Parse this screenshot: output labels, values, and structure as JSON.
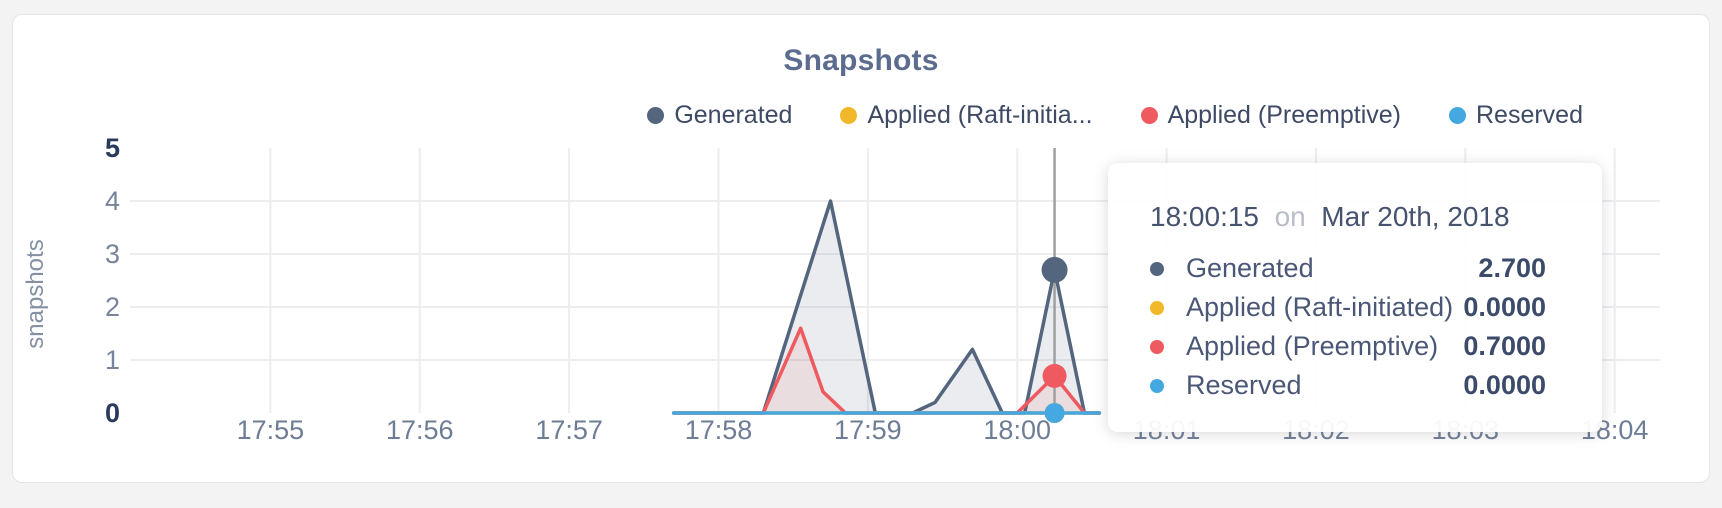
{
  "card": {
    "background": "#ffffff",
    "border_color": "#e3e4e8"
  },
  "chart": {
    "title": "Snapshots",
    "ylabel": "snapshots",
    "legend": {
      "items": [
        {
          "label": "Generated",
          "color": "#54657e"
        },
        {
          "label": "Applied (Raft-initia...",
          "color": "#f1b82a"
        },
        {
          "label": "Applied (Preemptive)",
          "color": "#ee5a5f"
        },
        {
          "label": "Reserved",
          "color": "#45a8e0"
        }
      ]
    }
  },
  "chart_data": {
    "type": "area",
    "title": "Snapshots",
    "xlabel": "",
    "ylabel": "snapshots",
    "ylim": [
      0,
      5
    ],
    "yticks": [
      0,
      1,
      2,
      3,
      4,
      5
    ],
    "grid_yticks": [
      1,
      2,
      3,
      4
    ],
    "grid": true,
    "legend_position": "top-right",
    "x_axis": {
      "unit": "minutes_since_17:55",
      "xlim_minutes": [
        -0.94,
        9.27
      ],
      "ticks": [
        {
          "m": 0,
          "label": "17:55"
        },
        {
          "m": 1,
          "label": "17:56"
        },
        {
          "m": 2,
          "label": "17:57"
        },
        {
          "m": 3,
          "label": "17:58"
        },
        {
          "m": 4,
          "label": "17:59"
        },
        {
          "m": 5,
          "label": "18:00"
        },
        {
          "m": 6,
          "label": "18:01"
        },
        {
          "m": 7,
          "label": "18:02"
        },
        {
          "m": 8,
          "label": "18:03"
        },
        {
          "m": 9,
          "label": "18:04"
        }
      ]
    },
    "series": [
      {
        "name": "Generated",
        "color": "#54657e",
        "fill": "rgba(84,101,126,0.12)",
        "points_min_val": [
          [
            2.7,
            0
          ],
          [
            3.3,
            0
          ],
          [
            3.75,
            4
          ],
          [
            4.05,
            0
          ],
          [
            4.3,
            0
          ],
          [
            4.45,
            0.2
          ],
          [
            4.7,
            1.2
          ],
          [
            4.9,
            0
          ],
          [
            5.05,
            0
          ],
          [
            5.25,
            2.7
          ],
          [
            5.45,
            0
          ],
          [
            5.55,
            0
          ]
        ]
      },
      {
        "name": "Applied (Raft-initiated)",
        "color": "#f1b82a",
        "fill": "none",
        "points_min_val": [
          [
            2.7,
            0
          ],
          [
            5.55,
            0
          ]
        ]
      },
      {
        "name": "Applied (Preemptive)",
        "color": "#ee5a5f",
        "fill": "rgba(238,90,95,0.10)",
        "points_min_val": [
          [
            2.7,
            0
          ],
          [
            3.3,
            0
          ],
          [
            3.55,
            1.6
          ],
          [
            3.7,
            0.4
          ],
          [
            3.85,
            0
          ],
          [
            5.0,
            0
          ],
          [
            5.25,
            0.7
          ],
          [
            5.45,
            0
          ],
          [
            5.55,
            0
          ]
        ]
      },
      {
        "name": "Reserved",
        "color": "#45a8e0",
        "fill": "none",
        "points_min_val": [
          [
            2.7,
            0
          ],
          [
            5.55,
            0
          ]
        ]
      }
    ],
    "hover": {
      "t_min": 5.25,
      "time_label": "18:00:15",
      "line_color": "#a0a0a0",
      "points": [
        {
          "series": 0,
          "value": 2.7,
          "radius": 13
        },
        {
          "series": 1,
          "value": 0,
          "radius": 10
        },
        {
          "series": 2,
          "value": 0.7,
          "radius": 12
        },
        {
          "series": 3,
          "value": 0,
          "radius": 10
        }
      ]
    }
  },
  "tooltip": {
    "time": "18:00:15",
    "on_word": "on",
    "date": "Mar 20th, 2018",
    "rows": [
      {
        "label": "Generated",
        "value": "2.700",
        "color": "#54657e"
      },
      {
        "label": "Applied (Raft-initiated)",
        "value": "0.0000",
        "color": "#f1b82a"
      },
      {
        "label": "Applied (Preemptive)",
        "value": "0.7000",
        "color": "#ee5a5f"
      },
      {
        "label": "Reserved",
        "value": "0.0000",
        "color": "#45a8e0"
      }
    ]
  }
}
